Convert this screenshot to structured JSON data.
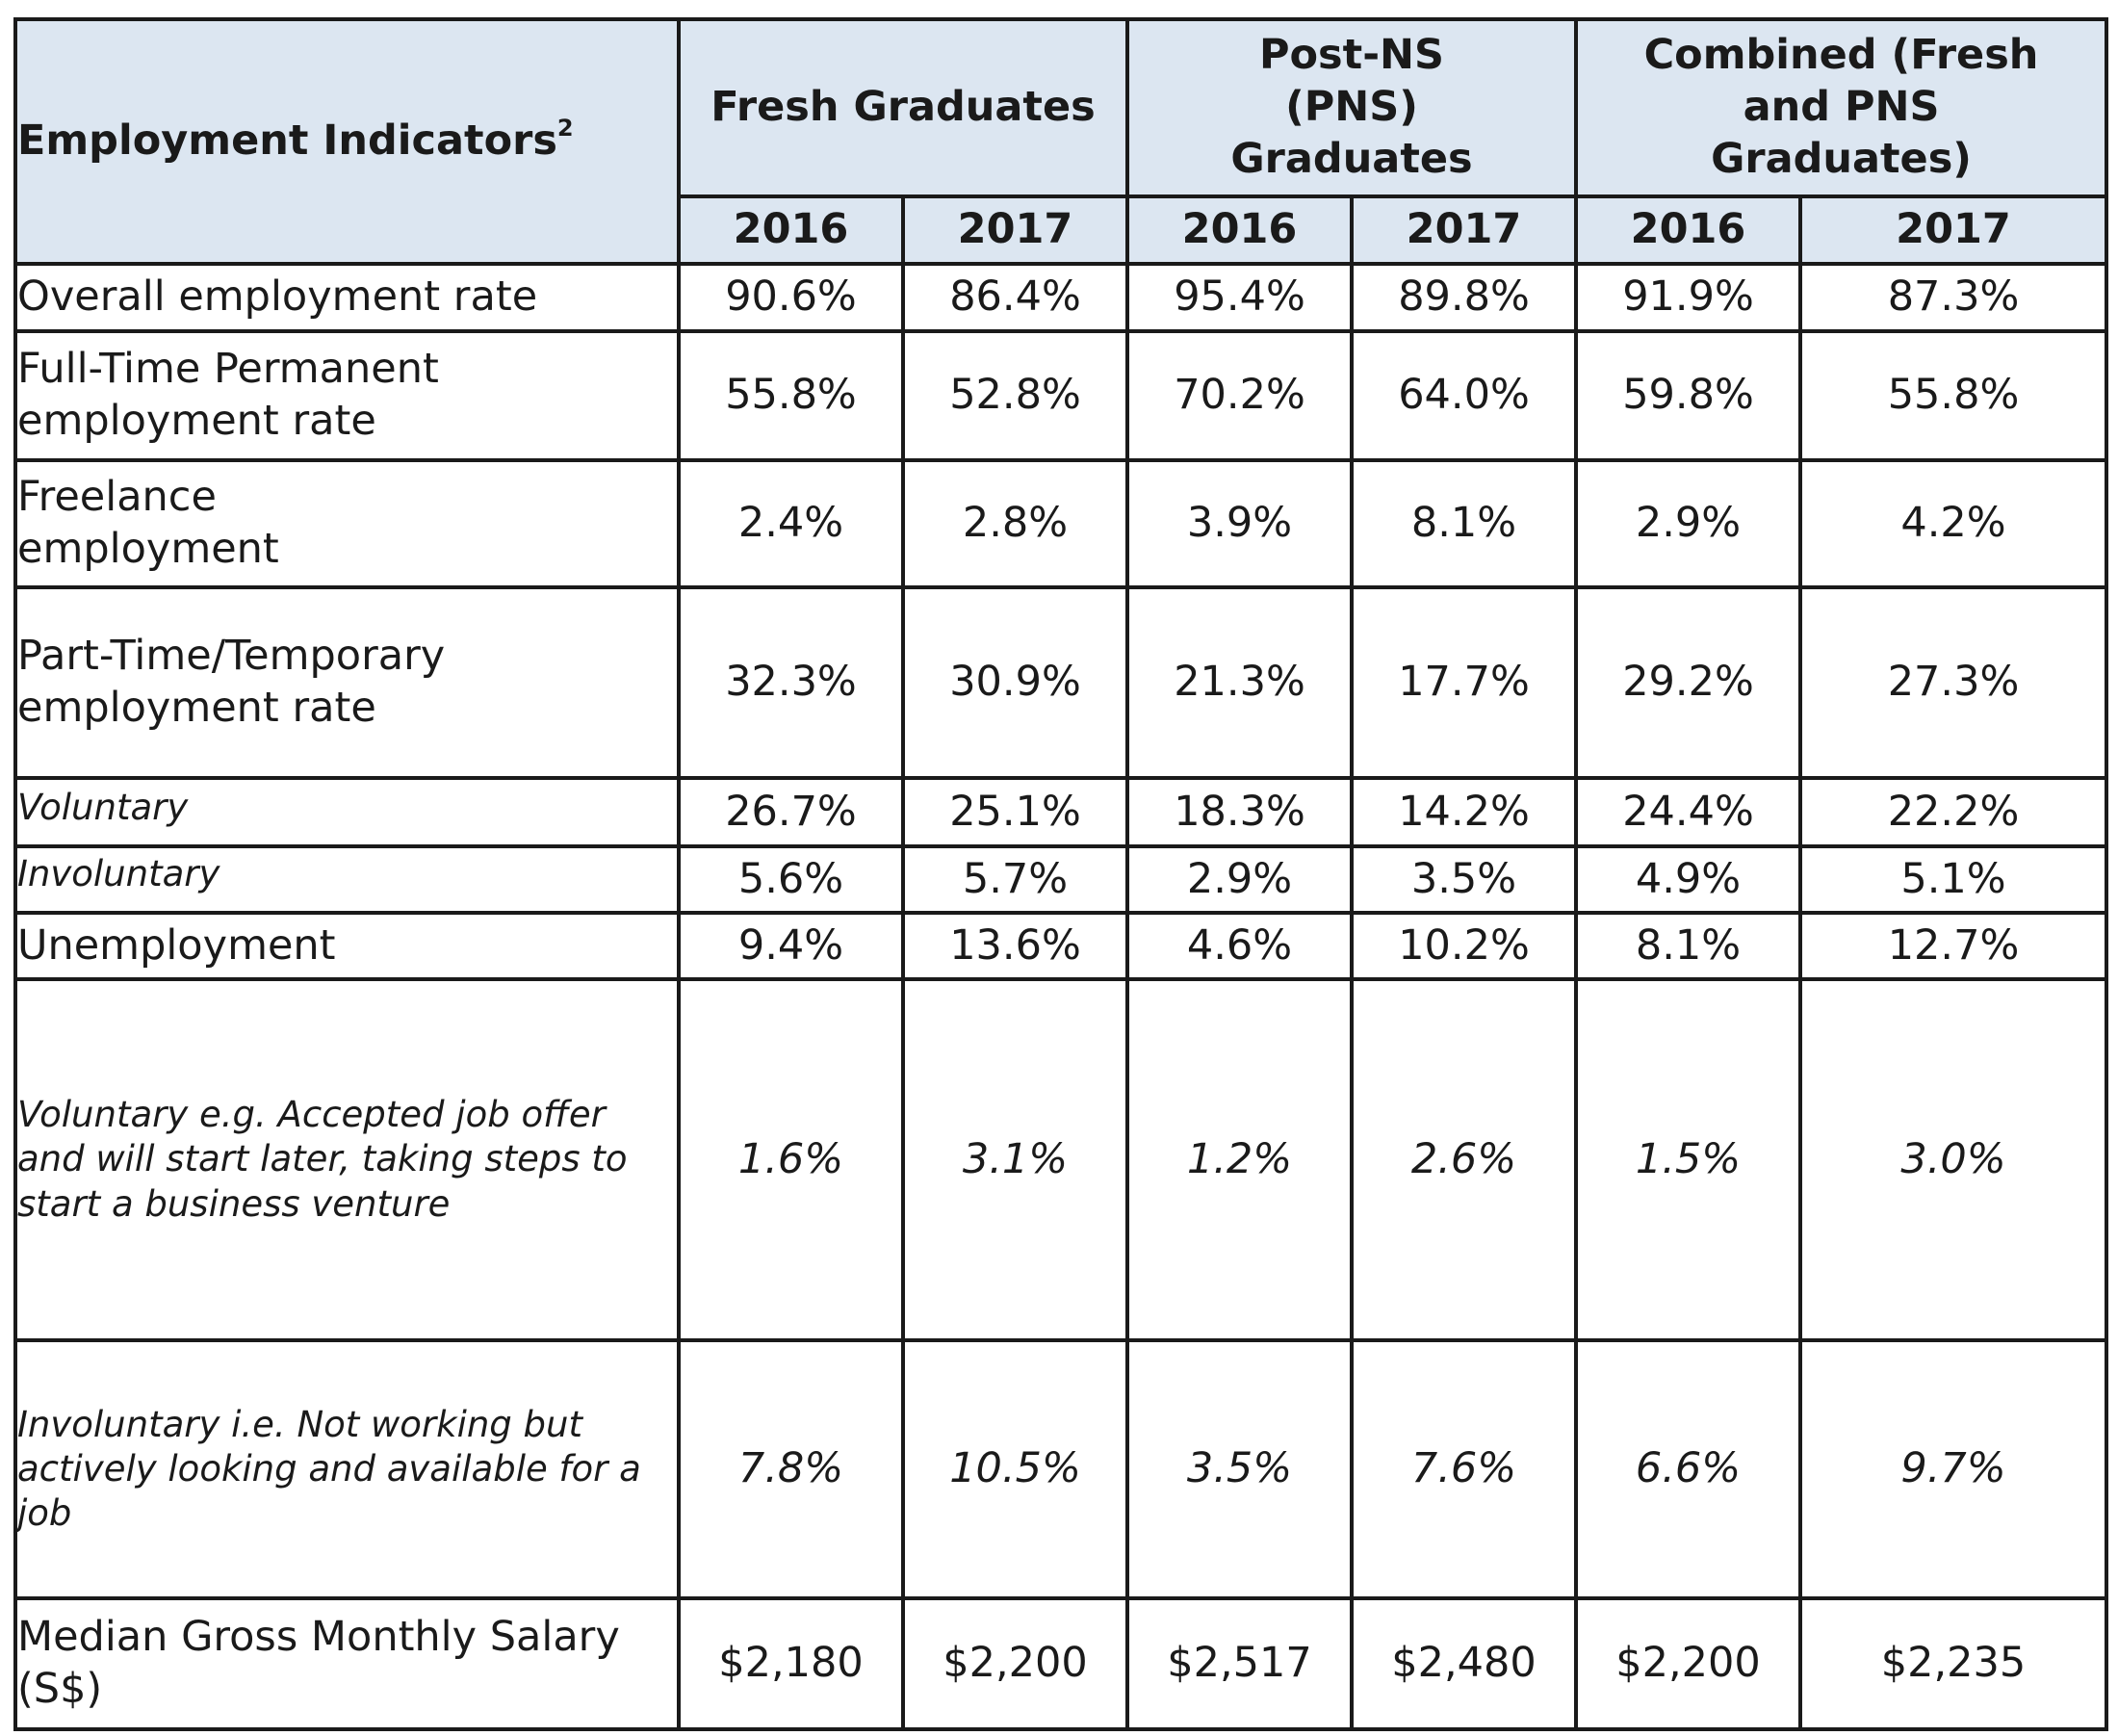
{
  "header": {
    "indicator_title": "Employment Indicators",
    "indicator_footnote": "2",
    "groups": [
      "Fresh Graduates",
      "Post-NS (PNS) Graduates",
      "Combined (Fresh and PNS Graduates)"
    ],
    "years": [
      "2016",
      "2017",
      "2016",
      "2017",
      "2016",
      "2017"
    ]
  },
  "rows": [
    {
      "label": "Overall employment rate",
      "values": [
        "90.6%",
        "86.4%",
        "95.4%",
        "89.8%",
        "91.9%",
        "87.3%"
      ]
    },
    {
      "label": "Full-Time Permanent employment rate",
      "values": [
        "55.8%",
        "52.8%",
        "70.2%",
        "64.0%",
        "59.8%",
        "55.8%"
      ]
    },
    {
      "label": "Freelance employment",
      "values": [
        "2.4%",
        "2.8%",
        "3.9%",
        "8.1%",
        "2.9%",
        "4.2%"
      ]
    },
    {
      "label": "Part-Time/Temporary employment rate",
      "values": [
        "32.3%",
        "30.9%",
        "21.3%",
        "17.7%",
        "29.2%",
        "27.3%"
      ]
    },
    {
      "label": "Voluntary",
      "values": [
        "26.7%",
        "25.1%",
        "18.3%",
        "14.2%",
        "24.4%",
        "22.2%"
      ]
    },
    {
      "label": "Involuntary",
      "values": [
        "5.6%",
        "5.7%",
        "2.9%",
        "3.5%",
        "4.9%",
        "5.1%"
      ]
    },
    {
      "label": "Unemployment",
      "values": [
        "9.4%",
        "13.6%",
        "4.6%",
        "10.2%",
        "8.1%",
        "12.7%"
      ]
    },
    {
      "label": "Voluntary e.g. Accepted job offer and will start later, taking steps to start a business venture",
      "values": [
        "1.6%",
        "3.1%",
        "1.2%",
        "2.6%",
        "1.5%",
        "3.0%"
      ]
    },
    {
      "label": "Involuntary i.e. Not working but actively looking and available for a job",
      "values": [
        "7.8%",
        "10.5%",
        "3.5%",
        "7.6%",
        "6.6%",
        "9.7%"
      ]
    },
    {
      "label": "Median Gross Monthly Salary (S$)",
      "values": [
        "$2,180",
        "$2,200",
        "$2,517",
        "$2,480",
        "$2,200",
        "$2,235"
      ]
    }
  ]
}
